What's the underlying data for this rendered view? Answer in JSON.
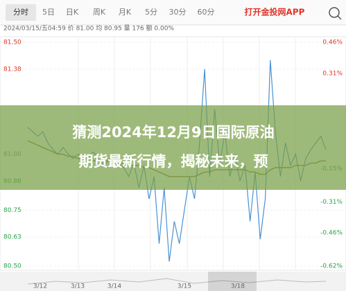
{
  "tabs": [
    "分时",
    "5日",
    "日K",
    "周K",
    "月K",
    "5分",
    "30分",
    "60分"
  ],
  "app_link": "打开金投网APP",
  "info": "2024/03/15/五04:59  价 81.00  均 80.95  量 176  额 0.00%",
  "banner": [
    "猜测2024年12月9日国际原油",
    "期货最新行情，揭秘未来，预"
  ],
  "chart_data": {
    "type": "line",
    "series": [
      {
        "name": "价",
        "color": "#4a90d4",
        "values": [
          81.12,
          81.1,
          81.08,
          81.1,
          81.05,
          81.02,
          81.0,
          81.03,
          81.0,
          80.98,
          81.0,
          80.97,
          80.99,
          81.01,
          80.98,
          80.95,
          80.97,
          81.0,
          80.96,
          80.94,
          80.9,
          80.96,
          80.85,
          80.95,
          80.8,
          80.9,
          80.6,
          80.85,
          80.52,
          80.7,
          80.6,
          80.75,
          80.9,
          80.8,
          81.05,
          81.38,
          80.9,
          81.2,
          80.95,
          81.1,
          80.9,
          81.0,
          80.88,
          80.95,
          80.7,
          80.92,
          80.62,
          80.8,
          81.42,
          81.1,
          80.9,
          81.05,
          80.95,
          81.0,
          80.88,
          80.98,
          81.02,
          81.05,
          81.08,
          81.02
        ]
      },
      {
        "name": "均",
        "color": "#8a7a3a",
        "values": [
          81.06,
          81.05,
          81.04,
          81.03,
          81.02,
          81.01,
          81.0,
          81.0,
          80.99,
          80.99,
          80.98,
          80.98,
          80.98,
          80.97,
          80.97,
          80.97,
          80.97,
          80.96,
          80.96,
          80.96,
          80.95,
          80.95,
          80.95,
          80.94,
          80.94,
          80.93,
          80.92,
          80.91,
          80.9,
          80.9,
          80.9,
          80.9,
          80.9,
          80.9,
          80.91,
          80.92,
          80.92,
          80.93,
          80.93,
          80.93,
          80.93,
          80.93,
          80.93,
          80.93,
          80.92,
          80.92,
          80.91,
          80.91,
          80.93,
          80.94,
          80.94,
          80.94,
          80.94,
          80.95,
          80.95,
          80.95,
          80.96,
          80.96,
          80.97,
          80.97
        ]
      }
    ],
    "ylim": [
      80.5,
      81.5
    ],
    "yticks": [
      {
        "value": 81.5,
        "label": "81.50"
      },
      {
        "value": 81.38,
        "label": "81.38"
      },
      {
        "value": 81.0,
        "label": "81.00"
      },
      {
        "value": 80.88,
        "label": "80.88"
      },
      {
        "value": 80.75,
        "label": "80.75"
      },
      {
        "value": 80.63,
        "label": "80.63"
      },
      {
        "value": 80.5,
        "label": "80.50"
      }
    ],
    "y2lim": [
      -0.62,
      0.46
    ],
    "y2ticks": [
      {
        "value": 0.46,
        "label": "0.46%"
      },
      {
        "value": 0.31,
        "label": "0.31%"
      },
      {
        "value": -0.15,
        "label": "-0.15%"
      },
      {
        "value": -0.31,
        "label": "-0.31%"
      },
      {
        "value": -0.46,
        "label": "-0.46%"
      },
      {
        "value": -0.62,
        "label": "-0.62%"
      }
    ],
    "navigator_labels": [
      "3/12",
      "3/13",
      "3/14",
      "3/15",
      "3/18"
    ],
    "up_color": "#e0362b",
    "down_color": "#2aa34a"
  }
}
